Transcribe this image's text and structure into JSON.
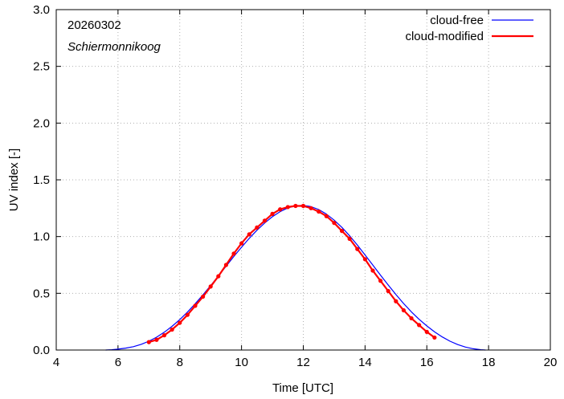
{
  "chart_data": {
    "type": "line",
    "xlabel": "Time  [UTC]",
    "ylabel": "UV index  [-]",
    "xlim": [
      4,
      20
    ],
    "ylim": [
      0,
      3.0
    ],
    "xticks": [
      "4",
      "6",
      "8",
      "10",
      "12",
      "14",
      "16",
      "18",
      "20"
    ],
    "yticks": [
      "0.0",
      "0.5",
      "1.0",
      "1.5",
      "2.0",
      "2.5",
      "3.0"
    ],
    "grid": true,
    "legend_position": "top-right",
    "annotations": {
      "date": "20260302",
      "location": "Schiermonnikoog"
    },
    "series": [
      {
        "name": "cloud-free",
        "color": "#0000ff",
        "x": [
          5.6,
          5.8,
          6.0,
          6.25,
          6.5,
          6.75,
          7.0,
          7.25,
          7.5,
          7.75,
          8.0,
          8.25,
          8.5,
          8.75,
          9.0,
          9.25,
          9.5,
          9.75,
          10.0,
          10.25,
          10.5,
          10.75,
          11.0,
          11.25,
          11.5,
          11.75,
          12.0,
          12.25,
          12.5,
          12.75,
          13.0,
          13.25,
          13.5,
          13.75,
          14.0,
          14.25,
          14.5,
          14.75,
          15.0,
          15.25,
          15.5,
          15.75,
          16.0,
          16.25,
          16.5,
          16.75,
          17.0,
          17.25,
          17.5,
          17.75,
          17.9
        ],
        "y": [
          0.0,
          0.003,
          0.008,
          0.017,
          0.03,
          0.05,
          0.078,
          0.113,
          0.157,
          0.209,
          0.268,
          0.335,
          0.408,
          0.486,
          0.568,
          0.653,
          0.739,
          0.824,
          0.906,
          0.984,
          1.056,
          1.12,
          1.175,
          1.22,
          1.253,
          1.271,
          1.275,
          1.264,
          1.238,
          1.198,
          1.145,
          1.081,
          1.007,
          0.925,
          0.838,
          0.749,
          0.66,
          0.573,
          0.489,
          0.41,
          0.337,
          0.271,
          0.212,
          0.16,
          0.115,
          0.078,
          0.048,
          0.026,
          0.011,
          0.003,
          0.0
        ]
      },
      {
        "name": "cloud-modified",
        "color": "#ff0000",
        "x": [
          7.0,
          7.25,
          7.5,
          7.75,
          8.0,
          8.25,
          8.5,
          8.75,
          9.0,
          9.25,
          9.5,
          9.75,
          10.0,
          10.25,
          10.5,
          10.75,
          11.0,
          11.25,
          11.5,
          11.75,
          12.0,
          12.25,
          12.5,
          12.75,
          13.0,
          13.25,
          13.5,
          13.75,
          14.0,
          14.25,
          14.5,
          14.75,
          15.0,
          15.25,
          15.5,
          15.75,
          16.0,
          16.25
        ],
        "y": [
          0.07,
          0.09,
          0.13,
          0.18,
          0.24,
          0.31,
          0.39,
          0.47,
          0.56,
          0.65,
          0.75,
          0.85,
          0.94,
          1.02,
          1.08,
          1.14,
          1.2,
          1.24,
          1.26,
          1.27,
          1.27,
          1.25,
          1.22,
          1.18,
          1.12,
          1.05,
          0.98,
          0.89,
          0.8,
          0.7,
          0.61,
          0.52,
          0.43,
          0.35,
          0.28,
          0.22,
          0.16,
          0.11
        ]
      }
    ]
  }
}
